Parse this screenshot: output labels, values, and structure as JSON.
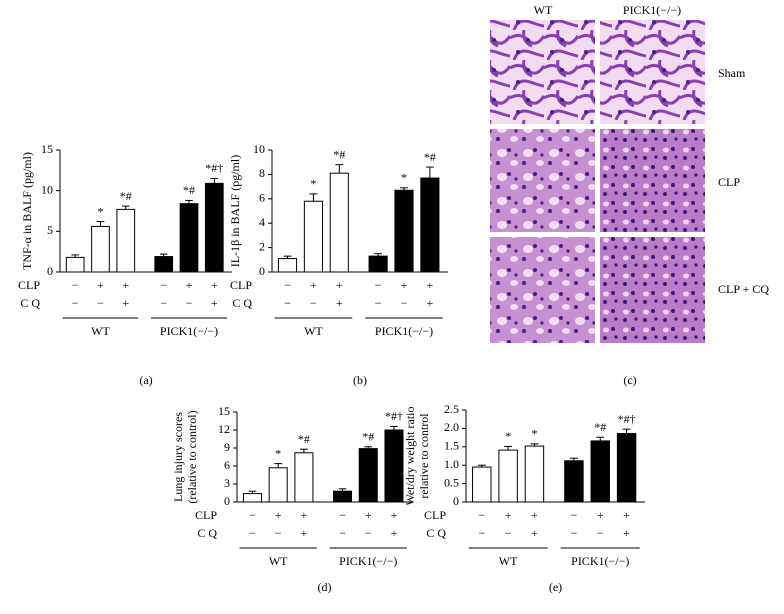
{
  "chart_data": [
    {
      "type": "bar",
      "panel": "(a)",
      "y_label": "TNF-α in BALF (pg/ml)",
      "ylim": [
        0,
        15
      ],
      "yticks": [
        0,
        5,
        10,
        15
      ],
      "series": [
        {
          "name": "WT",
          "color": "#ffffff",
          "values": [
            1.8,
            5.6,
            7.7
          ],
          "errors": [
            0.3,
            0.6,
            0.4
          ],
          "annotations": [
            null,
            "*",
            "*#"
          ]
        },
        {
          "name": "PICK1(−/−)",
          "color": "#000000",
          "values": [
            1.9,
            8.4,
            10.9
          ],
          "errors": [
            0.3,
            0.4,
            0.6
          ],
          "annotations": [
            null,
            "*#",
            "*#†"
          ]
        }
      ]
    },
    {
      "type": "bar",
      "panel": "(b)",
      "y_label": "IL-1β in BALF (pg/ml)",
      "ylim": [
        0,
        10
      ],
      "yticks": [
        0,
        2,
        4,
        6,
        8,
        10
      ],
      "series": [
        {
          "name": "WT",
          "color": "#ffffff",
          "values": [
            1.1,
            5.8,
            8.1
          ],
          "errors": [
            0.2,
            0.6,
            0.7
          ],
          "annotations": [
            null,
            "*",
            "*#"
          ]
        },
        {
          "name": "PICK1(−/−)",
          "color": "#000000",
          "values": [
            1.3,
            6.7,
            7.7
          ],
          "errors": [
            0.2,
            0.2,
            0.9
          ],
          "annotations": [
            null,
            "*",
            "*#"
          ]
        }
      ]
    },
    {
      "type": "bar",
      "panel": "(d)",
      "y_label": [
        "Lung injury scores",
        "(relative to control)"
      ],
      "ylim": [
        0,
        15
      ],
      "yticks": [
        0,
        3,
        6,
        9,
        12,
        15
      ],
      "series": [
        {
          "name": "WT",
          "color": "#ffffff",
          "values": [
            1.4,
            5.7,
            8.2
          ],
          "errors": [
            0.4,
            0.7,
            0.6
          ],
          "annotations": [
            null,
            "*",
            "*#"
          ]
        },
        {
          "name": "PICK1(−/−)",
          "color": "#000000",
          "values": [
            1.8,
            8.9,
            12.0
          ],
          "errors": [
            0.4,
            0.3,
            0.6
          ],
          "annotations": [
            null,
            "*#",
            "*#†"
          ]
        }
      ]
    },
    {
      "type": "bar",
      "panel": "(e)",
      "y_label": [
        "Wet/dry weight ratio",
        "relative to control"
      ],
      "ylim": [
        0,
        2.5
      ],
      "yticks": [
        0,
        0.5,
        {
          "value": 1,
          "label": "1.0"
        },
        1.5,
        {
          "value": 2,
          "label": "2.0"
        },
        2.5
      ],
      "series": [
        {
          "name": "WT",
          "color": "#ffffff",
          "values": [
            0.95,
            1.41,
            1.52
          ],
          "errors": [
            0.05,
            0.1,
            0.06
          ],
          "annotations": [
            null,
            "*",
            "*"
          ]
        },
        {
          "name": "PICK1(−/−)",
          "color": "#000000",
          "values": [
            1.12,
            1.66,
            1.86
          ],
          "errors": [
            0.07,
            0.1,
            0.12
          ],
          "annotations": [
            null,
            "*#",
            "*#†"
          ]
        }
      ]
    }
  ],
  "conditions": {
    "rows": [
      {
        "label": "CLP",
        "signs": [
          "−",
          "+",
          "+"
        ]
      },
      {
        "label": "C Q",
        "signs": [
          "−",
          "−",
          "+"
        ]
      }
    ]
  },
  "histology": {
    "panel": "(c)",
    "columns": [
      "WT",
      "PICK1(−/−)"
    ],
    "rows": [
      "Sham",
      "CLP",
      "CLP + CQ"
    ]
  }
}
